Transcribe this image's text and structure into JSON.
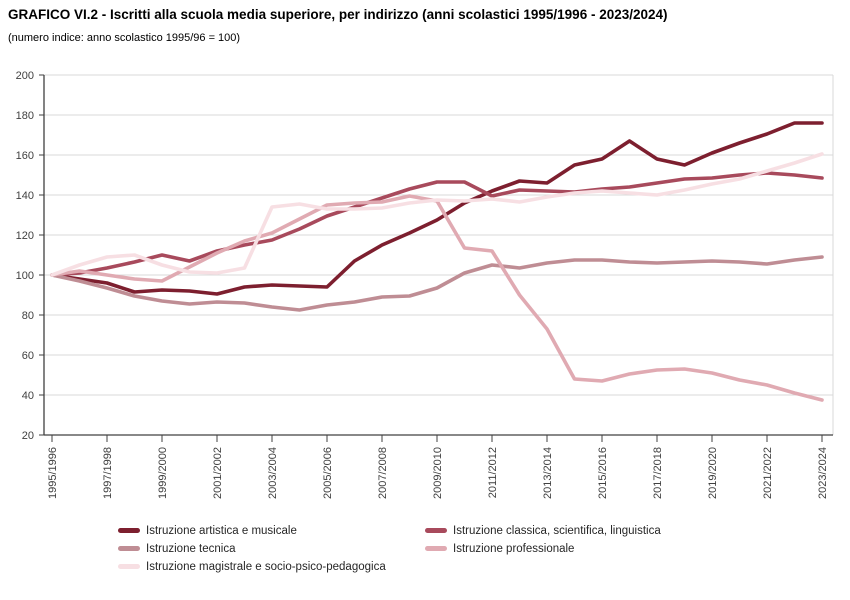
{
  "header": {
    "title": "GRAFICO VI.2 - Iscritti alla scuola media superiore, per indirizzo (anni scolastici 1995/1996 - 2023/2024)",
    "subtitle": "(numero indice: anno scolastico 1995/96 = 100)"
  },
  "colors": {
    "artistica": "#7d1f2f",
    "classica": "#a84a5c",
    "tecnica": "#bf8d94",
    "professionale": "#e0aab2",
    "magistrale": "#f7dfe3",
    "grid": "#d9d9d9",
    "axis": "#404040",
    "tick_text": "#404040"
  },
  "chart_data": {
    "type": "line",
    "title": "GRAFICO VI.2 - Iscritti alla scuola media superiore, per indirizzo (anni scolastici 1995/1996 - 2023/2024)",
    "subtitle": "(numero indice: anno scolastico 1995/96 = 100)",
    "xlabel": "",
    "ylabel": "",
    "ylim": [
      20,
      200
    ],
    "y_ticks": [
      20,
      40,
      60,
      80,
      100,
      120,
      140,
      160,
      180,
      200
    ],
    "grid": "horizontal",
    "legend_position": "bottom",
    "x": [
      "1995/1996",
      "1996/1997",
      "1997/1998",
      "1998/1999",
      "1999/2000",
      "2000/2001",
      "2001/2002",
      "2002/2003",
      "2003/2004",
      "2004/2005",
      "2005/2006",
      "2006/2007",
      "2007/2008",
      "2008/2009",
      "2009/2010",
      "2010/2011",
      "2011/2012",
      "2012/2013",
      "2013/2014",
      "2014/2015",
      "2015/2016",
      "2016/2017",
      "2017/2018",
      "2018/2019",
      "2019/2020",
      "2020/2021",
      "2021/2022",
      "2022/2023",
      "2023/2024"
    ],
    "x_tick_labels": [
      "1995/1996",
      "1997/1998",
      "1999/2000",
      "2001/2002",
      "2003/2004",
      "2005/2006",
      "2007/2008",
      "2009/2010",
      "2011/2012",
      "2013/2014",
      "2015/2016",
      "2017/2018",
      "2019/2020",
      "2021/2022",
      "2023/2024"
    ],
    "series": [
      {
        "name": "Istruzione artistica e musicale",
        "color_key": "artistica",
        "values": [
          100,
          98,
          96,
          91.5,
          92.5,
          92,
          90.5,
          94,
          95,
          94.5,
          94,
          107,
          115,
          121,
          127.5,
          136,
          142,
          147,
          146,
          155,
          158,
          167,
          158,
          155,
          161,
          166,
          170.5,
          176,
          176
        ]
      },
      {
        "name": "Istruzione classica, scientifica, linguistica",
        "color_key": "classica",
        "values": [
          100,
          101,
          103.5,
          106.5,
          110,
          107,
          112,
          115,
          117.5,
          123,
          129.5,
          134,
          138.5,
          143,
          146.5,
          146.5,
          139.5,
          142.5,
          142,
          141.5,
          143,
          144,
          146,
          148,
          148.5,
          150,
          151,
          150,
          148.5
        ]
      },
      {
        "name": "Istruzione tecnica",
        "color_key": "tecnica",
        "values": [
          100,
          97,
          93.5,
          89.5,
          87,
          85.5,
          86.5,
          86,
          84,
          82.5,
          85,
          86.5,
          89,
          89.5,
          93.5,
          101,
          105,
          103.5,
          106,
          107.5,
          107.5,
          106.5,
          106,
          106.5,
          107,
          106.5,
          105.5,
          107.5,
          109
        ]
      },
      {
        "name": "Istruzione professionale",
        "color_key": "professionale",
        "values": [
          100,
          102,
          100,
          98,
          97,
          104,
          111,
          117,
          121,
          128,
          135,
          136,
          136.5,
          139.5,
          137,
          113.5,
          112,
          90,
          73,
          48,
          47,
          50.5,
          52.5,
          53,
          51,
          47.5,
          45,
          41,
          37.5
        ]
      },
      {
        "name": "Istruzione magistrale e socio-psico-pedagogica",
        "color_key": "magistrale",
        "values": [
          100,
          105,
          109,
          110,
          105,
          101.5,
          101,
          103.5,
          134,
          135.5,
          133,
          133,
          133.5,
          136,
          137.5,
          137,
          138,
          136.5,
          139,
          141,
          142,
          141,
          140,
          142.5,
          145.5,
          148,
          152,
          156,
          160.5
        ]
      }
    ]
  }
}
